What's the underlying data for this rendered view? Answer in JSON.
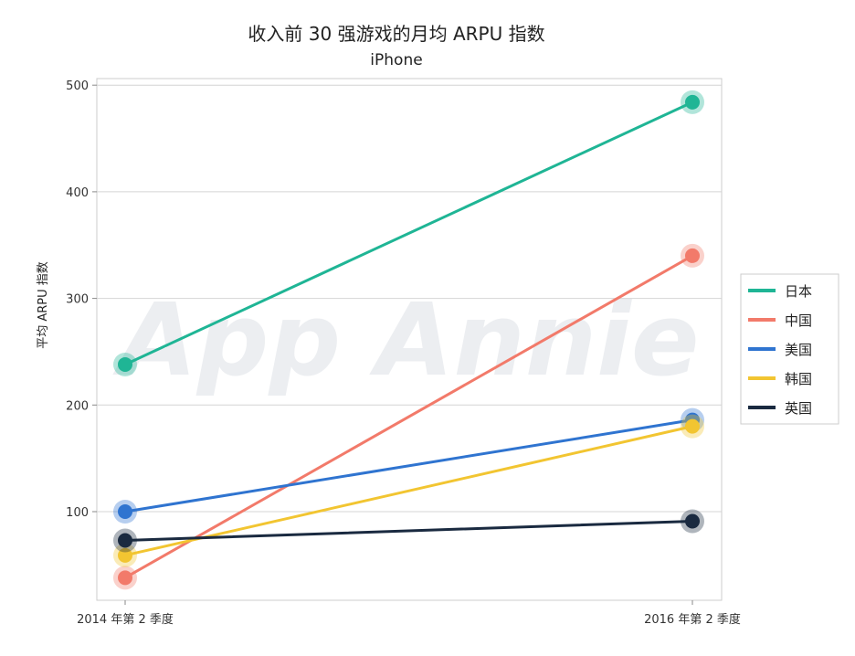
{
  "chart_data": {
    "type": "line",
    "title": "收入前 30 强游戏的月均 ARPU 指数",
    "subtitle": "iPhone",
    "ylabel": "平均 ARPU 指数",
    "xlabel": "",
    "categories": [
      "2014 年第 2 季度",
      "2016 年第 2 季度"
    ],
    "ylim": [
      20,
      510
    ],
    "yticks": [
      100,
      200,
      300,
      400,
      500
    ],
    "grid": true,
    "legend_position": "right",
    "watermark": "App Annie",
    "series": [
      {
        "name": "日本",
        "color": "#1fb595",
        "values": [
          238,
          484
        ]
      },
      {
        "name": "中国",
        "color": "#f27a6a",
        "values": [
          38,
          340
        ]
      },
      {
        "name": "美国",
        "color": "#2f74d0",
        "values": [
          100,
          186
        ]
      },
      {
        "name": "韩国",
        "color": "#f2c531",
        "values": [
          59,
          180
        ]
      },
      {
        "name": "英国",
        "color": "#1a2a40",
        "values": [
          73,
          91
        ]
      }
    ]
  }
}
